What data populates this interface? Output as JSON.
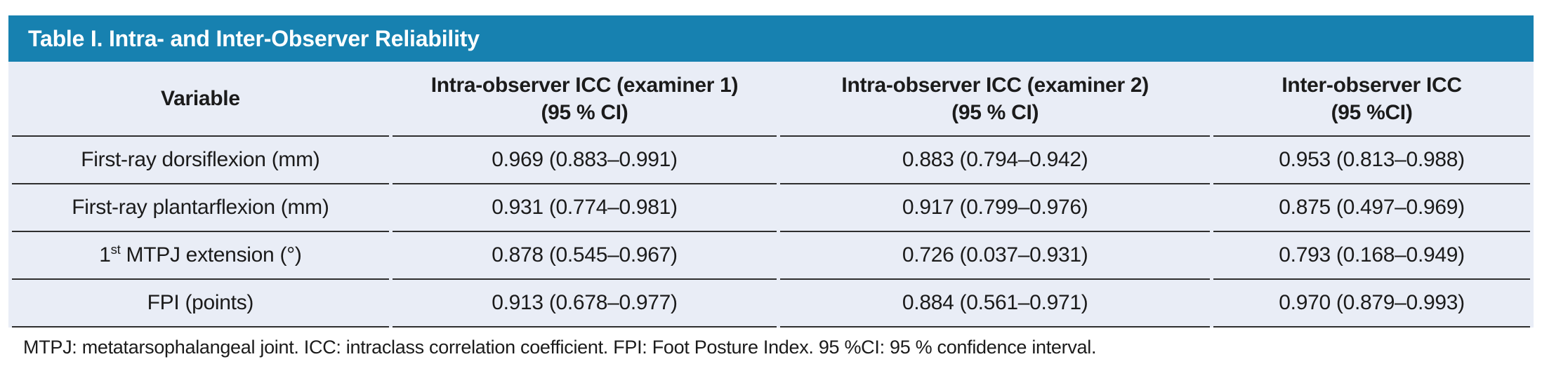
{
  "colors": {
    "accent": "#1781B0",
    "row_bg": "#E9EDF6",
    "border": "#2E2E2E",
    "title_text": "#FFFFFF",
    "body_text": "#1B1B1B",
    "page_bg": "#FFFFFF"
  },
  "table": {
    "title": "Table I. Intra- and Inter-Observer Reliability",
    "columns": [
      {
        "label": "Variable",
        "sub": ""
      },
      {
        "label": "Intra-observer ICC (examiner 1)",
        "sub": "(95 % CI)"
      },
      {
        "label": "Intra-observer ICC (examiner 2)",
        "sub": "(95 % CI)"
      },
      {
        "label": "Inter-observer ICC",
        "sub": "(95 %CI)"
      }
    ],
    "rows": [
      {
        "variable": {
          "pre": "First-ray dorsiflexion (mm)",
          "sup": "",
          "post": ""
        },
        "icc1": "0.969 (0.883–0.991)",
        "icc2": "0.883 (0.794–0.942)",
        "inter": "0.953 (0.813–0.988)"
      },
      {
        "variable": {
          "pre": "First-ray plantarflexion (mm)",
          "sup": "",
          "post": ""
        },
        "icc1": "0.931 (0.774–0.981)",
        "icc2": "0.917 (0.799–0.976)",
        "inter": "0.875 (0.497–0.969)"
      },
      {
        "variable": {
          "pre": "1",
          "sup": "st",
          "post": " MTPJ extension (°)"
        },
        "icc1": "0.878 (0.545–0.967)",
        "icc2": "0.726 (0.037–0.931)",
        "inter": "0.793 (0.168–0.949)"
      },
      {
        "variable": {
          "pre": "FPI (points)",
          "sup": "",
          "post": ""
        },
        "icc1": "0.913 (0.678–0.977)",
        "icc2": "0.884 (0.561–0.971)",
        "inter": "0.970 (0.879–0.993)"
      }
    ],
    "footnote": "MTPJ: metatarsophalangeal joint. ICC: intraclass correlation coefficient. FPI: Foot Posture Index. 95 %CI: 95 % confidence interval."
  }
}
